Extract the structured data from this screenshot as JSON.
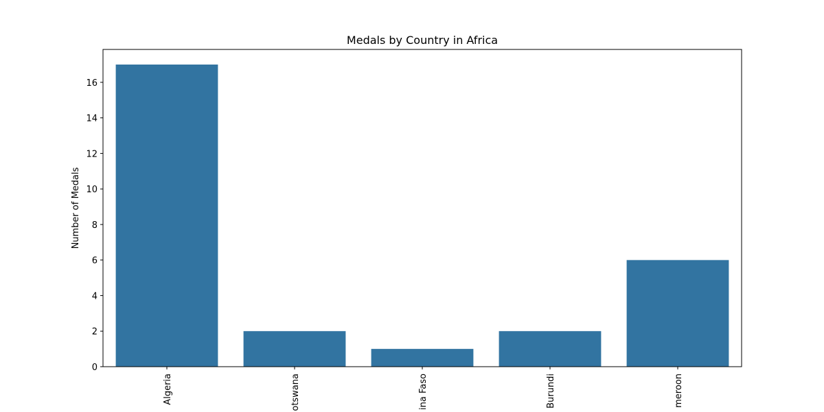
{
  "chart_data": {
    "type": "bar",
    "title": "Medals by Country in Africa",
    "xlabel": "",
    "ylabel": "Number of Medals",
    "categories": [
      "Algeria",
      "Botswana",
      "Burkina Faso",
      "Burundi",
      "Cameroon"
    ],
    "visible_category_labels": [
      "Algeria",
      "otswana",
      "ina Faso",
      "Burundi",
      "meroon"
    ],
    "values": [
      17,
      2,
      1,
      2,
      6
    ],
    "ylim": [
      0,
      17.85
    ],
    "yticks": [
      0,
      2,
      4,
      6,
      8,
      10,
      12,
      14,
      16
    ],
    "bar_color": "#3274a1",
    "grid": false,
    "legend": "none"
  }
}
